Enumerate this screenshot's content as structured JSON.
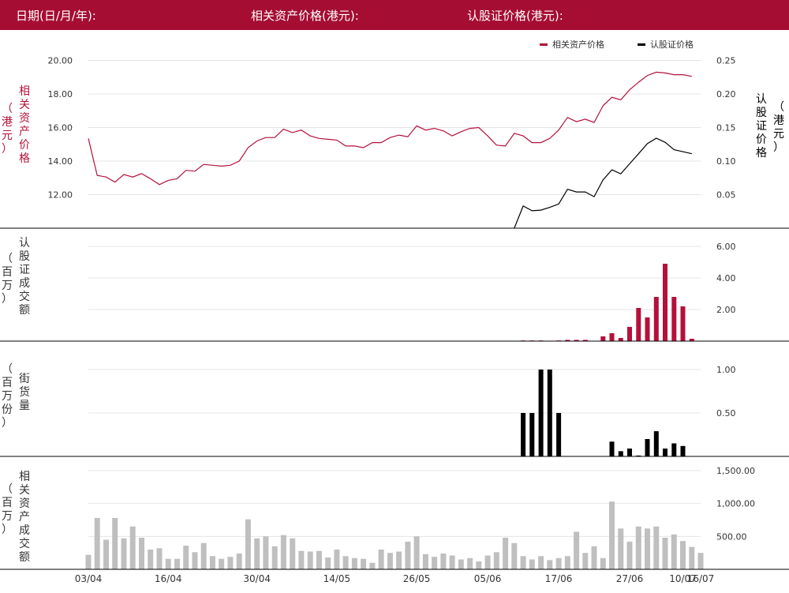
{
  "header": {
    "date_label": "日期(日/月/年):",
    "asset_price_label": "相关资产价格(港元):",
    "warrant_price_label": "认股证价格(港元):"
  },
  "colors": {
    "header_bg": "#a50d33",
    "asset": "#b5103a",
    "warrant": "#000000",
    "asset_volume": "#bfbfbf",
    "grid": "#e4e4e4"
  },
  "chart_data": [
    {
      "type": "line",
      "legend": [
        "相关资产价格",
        "认股证价格"
      ],
      "legend_position": "top-right",
      "ylabel_left": "相关资产价格（港元）",
      "ylabel_right": "认股证价格（港元）",
      "left_ticks": [
        "12.00",
        "14.00",
        "16.00",
        "18.00",
        "20.00"
      ],
      "right_ticks": [
        "0.05",
        "0.10",
        "0.15",
        "0.20",
        "0.25"
      ],
      "ylim_left": [
        10.0,
        20.4
      ],
      "ylim_right": [
        0.0,
        0.26
      ],
      "series": [
        {
          "name": "相关资产价格",
          "axis": "left",
          "values": [
            15.35,
            13.15,
            13.05,
            12.75,
            13.2,
            13.05,
            13.25,
            12.95,
            12.6,
            12.85,
            12.95,
            13.45,
            13.4,
            13.8,
            13.75,
            13.7,
            13.75,
            14.0,
            14.8,
            15.2,
            15.4,
            15.4,
            15.9,
            15.7,
            15.85,
            15.5,
            15.35,
            15.3,
            15.25,
            14.9,
            14.9,
            14.8,
            15.1,
            15.1,
            15.4,
            15.55,
            15.45,
            16.1,
            15.85,
            15.95,
            15.8,
            15.5,
            15.75,
            15.95,
            16.0,
            15.5,
            14.95,
            14.9,
            15.65,
            15.5,
            15.1,
            15.1,
            15.35,
            15.85,
            16.6,
            16.35,
            16.5,
            16.3,
            17.3,
            17.8,
            17.65,
            18.25,
            18.7,
            19.1,
            19.3,
            19.25,
            19.15,
            19.15,
            19.05
          ]
        },
        {
          "name": "认股证价格",
          "axis": "right",
          "start_index": 48,
          "values": [
            0.0,
            0.033,
            0.026,
            0.027,
            0.031,
            0.036,
            0.058,
            0.054,
            0.054,
            0.047,
            0.072,
            0.087,
            0.081,
            0.096,
            0.111,
            0.126,
            0.134,
            0.128,
            0.117,
            0.114,
            0.111
          ]
        }
      ]
    },
    {
      "type": "bar",
      "ylabel": "认股证成交额（百万）",
      "ticks": [
        "2.00",
        "4.00",
        "6.00"
      ],
      "ylim": [
        0,
        6.3
      ],
      "start_index": 49,
      "values": [
        0.04,
        0.04,
        0.04,
        0,
        0.04,
        0.08,
        0.08,
        0.08,
        0,
        0.3,
        0.5,
        0.2,
        0.9,
        2.1,
        1.5,
        2.8,
        4.9,
        2.8,
        2.2,
        0.15
      ]
    },
    {
      "type": "bar",
      "ylabel": "街货量（百万份）",
      "ticks": [
        "0.50",
        "1.00"
      ],
      "ylim": [
        0,
        1.2
      ],
      "start_index": 49,
      "values": [
        0.5,
        0.5,
        1.0,
        1.0,
        0.5,
        0,
        0,
        0,
        0,
        0,
        0.17,
        0.06,
        0.09,
        0.01,
        0.2,
        0.29,
        0.09,
        0.15,
        0.12
      ]
    },
    {
      "type": "bar",
      "ylabel": "相关资产成交额（百万）",
      "ticks": [
        "500.00",
        "1,000.00",
        "1,500.00"
      ],
      "ylim": [
        0,
        1500
      ],
      "x_tick_labels": [
        "03/04",
        "16/04",
        "30/04",
        "14/05",
        "26/05",
        "05/06",
        "17/06",
        "27/06",
        "10/07",
        "16/07"
      ],
      "values": [
        220,
        780,
        450,
        780,
        470,
        650,
        480,
        300,
        320,
        160,
        160,
        360,
        260,
        400,
        200,
        160,
        190,
        240,
        760,
        470,
        500,
        350,
        520,
        470,
        280,
        270,
        280,
        180,
        300,
        200,
        170,
        160,
        100,
        300,
        250,
        270,
        420,
        500,
        230,
        190,
        240,
        210,
        150,
        170,
        120,
        210,
        260,
        480,
        400,
        200,
        150,
        200,
        140,
        170,
        200,
        570,
        250,
        350,
        170,
        1030,
        620,
        420,
        650,
        620,
        650,
        480,
        530,
        430,
        340,
        250
      ]
    }
  ]
}
